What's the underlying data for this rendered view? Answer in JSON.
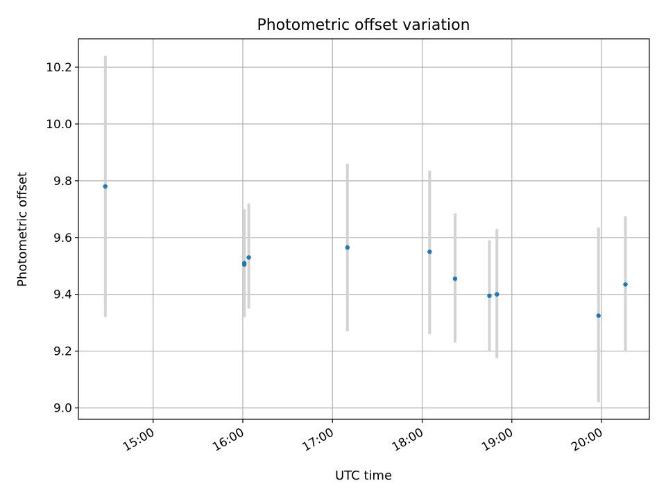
{
  "chart_data": {
    "type": "scatter",
    "title": "Photometric offset variation",
    "xlabel": "UTC time",
    "ylabel": "Photometric offset",
    "x_axis": {
      "kind": "time",
      "range": [
        "14:10",
        "20:32"
      ],
      "ticks": [
        "15:00",
        "16:00",
        "17:00",
        "18:00",
        "19:00",
        "20:00"
      ]
    },
    "y_axis": {
      "range": [
        8.96,
        10.3
      ],
      "ticks": [
        9.0,
        9.2,
        9.4,
        9.6,
        9.8,
        10.0,
        10.2
      ],
      "tick_labels": [
        "9.0",
        "9.2",
        "9.4",
        "9.6",
        "9.8",
        "10.0",
        "10.2"
      ]
    },
    "grid": true,
    "colors": {
      "point": "#1f77b4",
      "errorbar": "#d3d3d3",
      "grid": "#b0b0b0"
    },
    "points": [
      {
        "x": "14:28",
        "y": 9.78,
        "ylow": 9.32,
        "yhigh": 10.24
      },
      {
        "x": "16:01",
        "y": 9.505,
        "ylow": 9.32,
        "yhigh": 9.7
      },
      {
        "x": "16:01",
        "y": 9.51,
        "ylow": 9.32,
        "yhigh": 9.7
      },
      {
        "x": "16:04",
        "y": 9.53,
        "ylow": 9.35,
        "yhigh": 9.72
      },
      {
        "x": "17:10",
        "y": 9.565,
        "ylow": 9.27,
        "yhigh": 9.86
      },
      {
        "x": "18:05",
        "y": 9.55,
        "ylow": 9.26,
        "yhigh": 9.835
      },
      {
        "x": "18:22",
        "y": 9.455,
        "ylow": 9.23,
        "yhigh": 9.685
      },
      {
        "x": "18:45",
        "y": 9.395,
        "ylow": 9.2,
        "yhigh": 9.59
      },
      {
        "x": "18:50",
        "y": 9.4,
        "ylow": 9.175,
        "yhigh": 9.63
      },
      {
        "x": "19:58",
        "y": 9.325,
        "ylow": 9.02,
        "yhigh": 9.635
      },
      {
        "x": "20:16",
        "y": 9.435,
        "ylow": 9.2,
        "yhigh": 9.675
      }
    ]
  }
}
